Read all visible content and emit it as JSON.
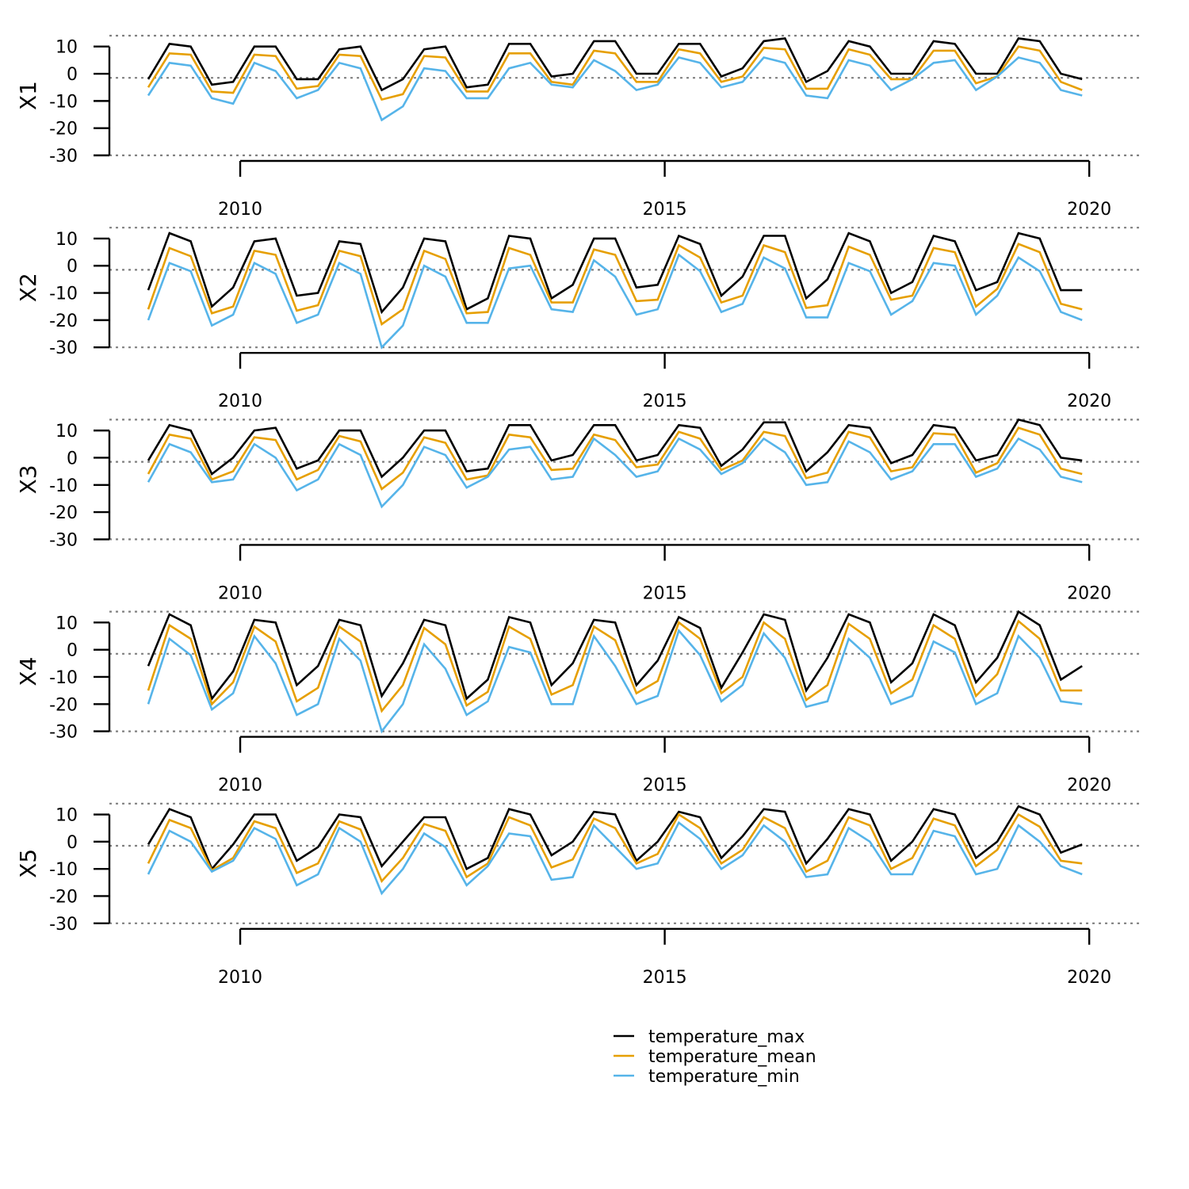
{
  "chart_data": {
    "type": "line",
    "x_dates": [
      "2008-12",
      "2009-03",
      "2009-06",
      "2009-09",
      "2009-12",
      "2010-03",
      "2010-06",
      "2010-09",
      "2010-12",
      "2011-03",
      "2011-06",
      "2011-09",
      "2011-12",
      "2012-03",
      "2012-06",
      "2012-09",
      "2012-12",
      "2013-03",
      "2013-06",
      "2013-09",
      "2013-12",
      "2014-03",
      "2014-06",
      "2014-09",
      "2014-12",
      "2015-03",
      "2015-06",
      "2015-09",
      "2015-12",
      "2016-03",
      "2016-06",
      "2016-09",
      "2016-12",
      "2017-03",
      "2017-06",
      "2017-09",
      "2017-12",
      "2018-03",
      "2018-06",
      "2018-09",
      "2018-12",
      "2019-03",
      "2019-06",
      "2019-09",
      "2019-12",
      "2020-03"
    ],
    "x_ticks": [
      "2010",
      "2015",
      "2020"
    ],
    "ylim": [
      -30,
      14
    ],
    "y_ticks": [
      10,
      0,
      -10,
      -20,
      -30
    ],
    "reference_lines": [
      14,
      -1.5,
      -30
    ],
    "legend_position": "bottom-right",
    "panels": [
      {
        "label": "X1",
        "series": [
          {
            "name": "temperature_max",
            "values": [
              -2,
              11,
              10,
              -4,
              -3,
              10,
              10,
              -2,
              -2,
              9,
              10,
              -6,
              -2,
              9,
              10,
              -5,
              -4,
              11,
              11,
              -1,
              0,
              12,
              12,
              0,
              0,
              11,
              11,
              -1,
              2,
              12,
              13,
              -3,
              1,
              12,
              10,
              0,
              0,
              12,
              11,
              0,
              0,
              13,
              12,
              0,
              -2,
              null
            ]
          },
          {
            "name": "temperature_mean",
            "values": [
              -5,
              7.5,
              7,
              -6.5,
              -7,
              7,
              6.5,
              -5.5,
              -4.5,
              7,
              6.5,
              -9.5,
              -7.5,
              6.5,
              6,
              -6.5,
              -6.5,
              7.5,
              7.5,
              -3,
              -4,
              8.5,
              7.5,
              -3,
              -3,
              9,
              7.5,
              -3,
              -1,
              9.5,
              9,
              -5.5,
              -5.5,
              9,
              7,
              -2,
              -2,
              8.5,
              8.5,
              -3.5,
              -1,
              10,
              8.5,
              -3,
              -6,
              null
            ]
          },
          {
            "name": "temperature_min",
            "values": [
              -8,
              4,
              3,
              -9,
              -11,
              4,
              1,
              -9,
              -6,
              4,
              2,
              -17,
              -12,
              2,
              1,
              -9,
              -9,
              2,
              4,
              -4,
              -5,
              5,
              1,
              -6,
              -4,
              6,
              4,
              -5,
              -3,
              6,
              4,
              -8,
              -9,
              5,
              3,
              -6,
              -2,
              4,
              5,
              -6,
              -1,
              6,
              4,
              -6,
              -8,
              null
            ]
          }
        ]
      },
      {
        "label": "X2",
        "series": [
          {
            "name": "temperature_max",
            "values": [
              -9,
              12,
              9,
              -15,
              -8,
              9,
              10,
              -11,
              -10,
              9,
              8,
              -17,
              -8,
              10,
              9,
              -16,
              -12,
              11,
              10,
              -12,
              -7,
              10,
              10,
              -8,
              -7,
              11,
              8,
              -11,
              -4,
              11,
              11,
              -12,
              -5,
              12,
              9,
              -10,
              -6,
              11,
              9,
              -9,
              -6,
              12,
              10,
              -9,
              -9,
              null
            ]
          },
          {
            "name": "temperature_mean",
            "values": [
              -16,
              6.5,
              3.5,
              -17.5,
              -15,
              5.5,
              4,
              -16.5,
              -14.5,
              5.5,
              3.5,
              -21.5,
              -16,
              5.5,
              2.5,
              -17.5,
              -17,
              6.5,
              4,
              -13.5,
              -13.5,
              6,
              4,
              -13,
              -12.5,
              7.5,
              3,
              -13.5,
              -11,
              7.5,
              5,
              -15.5,
              -14.5,
              7,
              4,
              -12.5,
              -11,
              6.5,
              5,
              -15,
              -8.5,
              8,
              5,
              -14,
              -16,
              null
            ]
          },
          {
            "name": "temperature_min",
            "values": [
              -20,
              1,
              -2,
              -22,
              -18,
              1,
              -3,
              -21,
              -18,
              1,
              -3,
              -30,
              -22,
              0,
              -4,
              -21,
              -21,
              -1,
              0,
              -16,
              -17,
              2,
              -4,
              -18,
              -16,
              4,
              -2,
              -17,
              -14,
              3,
              -1,
              -19,
              -19,
              1,
              -2,
              -18,
              -13,
              1,
              0,
              -18,
              -11,
              3,
              -2,
              -17,
              -20,
              null
            ]
          }
        ]
      },
      {
        "label": "X3",
        "series": [
          {
            "name": "temperature_max",
            "values": [
              -1,
              12,
              10,
              -6,
              0,
              10,
              11,
              -4,
              -1,
              10,
              10,
              -7,
              0,
              10,
              10,
              -5,
              -4,
              12,
              12,
              -1,
              1,
              12,
              12,
              -1,
              1,
              12,
              11,
              -3,
              3,
              13,
              13,
              -5,
              2,
              12,
              11,
              -2,
              1,
              12,
              11,
              -1,
              1,
              14,
              12,
              0,
              -1,
              null
            ]
          },
          {
            "name": "temperature_mean",
            "values": [
              -6,
              8.5,
              7,
              -8,
              -5,
              7.5,
              6.5,
              -8,
              -4.5,
              8,
              6,
              -11.5,
              -5.5,
              7.5,
              5.5,
              -8,
              -6.5,
              8.5,
              7.5,
              -4.5,
              -4,
              8.5,
              6.5,
              -3.5,
              -2.5,
              9.5,
              7,
              -4.5,
              -1,
              9.5,
              8,
              -7.5,
              -5.5,
              9.5,
              7.5,
              -5,
              -3.5,
              9,
              8.5,
              -5.5,
              -2,
              11,
              8.5,
              -4,
              -6,
              null
            ]
          },
          {
            "name": "temperature_min",
            "values": [
              -9,
              5,
              2,
              -9,
              -8,
              5,
              0,
              -12,
              -8,
              5,
              1,
              -18,
              -10,
              4,
              1,
              -11,
              -7,
              3,
              4,
              -8,
              -7,
              7,
              1,
              -7,
              -5,
              7,
              3,
              -6,
              -2,
              7,
              2,
              -10,
              -9,
              6,
              2,
              -8,
              -5,
              5,
              5,
              -7,
              -4,
              7,
              3,
              -7,
              -9,
              null
            ]
          }
        ]
      },
      {
        "label": "X4",
        "series": [
          {
            "name": "temperature_max",
            "values": [
              -6,
              13,
              9,
              -18,
              -8,
              11,
              10,
              -13,
              -6,
              11,
              9,
              -17,
              -5,
              11,
              9,
              -18,
              -11,
              12,
              10,
              -13,
              -5,
              11,
              10,
              -13,
              -4,
              12,
              8,
              -14,
              -1,
              13,
              11,
              -15,
              -3,
              13,
              10,
              -12,
              -5,
              13,
              9,
              -12,
              -3,
              14,
              9,
              -11,
              -6,
              null
            ]
          },
          {
            "name": "temperature_mean",
            "values": [
              -15,
              9,
              4,
              -20,
              -12,
              8.5,
              3,
              -19,
              -14,
              8.5,
              3,
              -22.5,
              -13,
              8,
              2,
              -20.5,
              -15.5,
              8.5,
              4,
              -16.5,
              -13,
              8.5,
              3.5,
              -16,
              -11.5,
              10,
              4,
              -16,
              -10,
              10,
              4,
              -18.5,
              -13,
              9.5,
              4,
              -16,
              -11,
              9,
              4,
              -17,
              -9,
              10.5,
              4,
              -15,
              -15,
              null
            ]
          },
          {
            "name": "temperature_min",
            "values": [
              -20,
              4,
              -2,
              -22,
              -16,
              5,
              -5,
              -24,
              -20,
              4,
              -4,
              -30,
              -20,
              2,
              -7,
              -24,
              -19,
              1,
              -1,
              -20,
              -20,
              5,
              -6,
              -20,
              -17,
              7,
              -2,
              -19,
              -13,
              6,
              -3,
              -21,
              -19,
              4,
              -3,
              -20,
              -17,
              3,
              -1,
              -20,
              -16,
              5,
              -3,
              -19,
              -20,
              null
            ]
          }
        ]
      },
      {
        "label": "X5",
        "series": [
          {
            "name": "temperature_max",
            "values": [
              -1,
              12,
              9,
              -10,
              -1,
              10,
              10,
              -7,
              -2,
              10,
              9,
              -9,
              0,
              9,
              9,
              -10,
              -6,
              12,
              10,
              -5,
              0,
              11,
              10,
              -7,
              0,
              11,
              9,
              -6,
              2,
              12,
              11,
              -8,
              1,
              12,
              10,
              -7,
              0,
              12,
              10,
              -6,
              0,
              13,
              10,
              -4,
              -1,
              null
            ]
          },
          {
            "name": "temperature_mean",
            "values": [
              -8,
              8,
              5,
              -10.5,
              -6,
              7.5,
              5,
              -11.5,
              -8,
              7.5,
              4.5,
              -14.5,
              -6,
              6.5,
              4,
              -13,
              -8,
              9,
              6,
              -9.5,
              -6.5,
              8.5,
              5,
              -8,
              -4.5,
              10,
              5,
              -8,
              -3,
              9,
              5,
              -11,
              -7,
              9,
              6,
              -10,
              -6,
              8.5,
              6,
              -9,
              -3,
              10,
              5.5,
              -7,
              -8,
              null
            ]
          },
          {
            "name": "temperature_min",
            "values": [
              -12,
              4,
              0,
              -11,
              -7,
              5,
              1,
              -16,
              -12,
              5,
              0,
              -19,
              -10,
              3,
              -2,
              -16,
              -9,
              3,
              2,
              -14,
              -13,
              6,
              -2,
              -10,
              -8,
              7,
              1,
              -10,
              -5,
              6,
              0,
              -13,
              -12,
              5,
              0,
              -12,
              -12,
              4,
              2,
              -12,
              -10,
              6,
              0,
              -9,
              -12,
              null
            ]
          }
        ]
      }
    ],
    "legend": [
      {
        "name": "temperature_max",
        "color": "#000000"
      },
      {
        "name": "temperature_mean",
        "color": "#E69F00"
      },
      {
        "name": "temperature_min",
        "color": "#56B4E9"
      }
    ]
  }
}
